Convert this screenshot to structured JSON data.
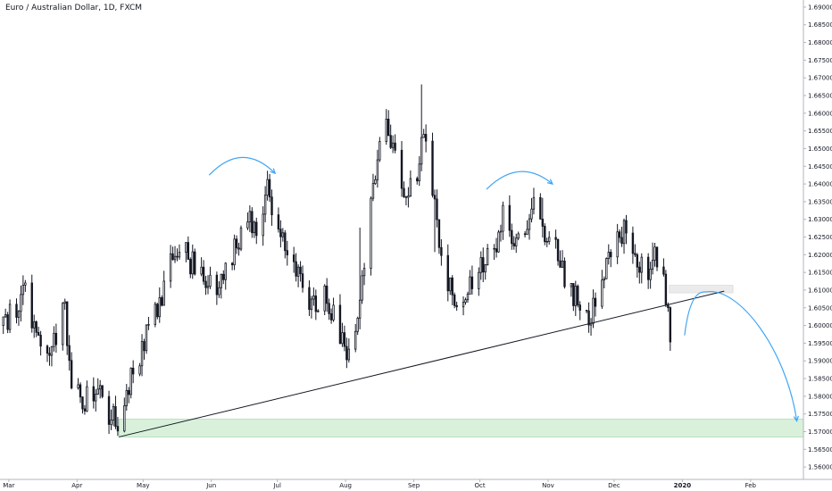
{
  "chart_data": {
    "type": "candlestick",
    "title": "Euro / Australian Dollar, 1D, FXCM",
    "y_ticks": [
      1.56,
      1.565,
      1.57,
      1.575,
      1.58,
      1.585,
      1.59,
      1.595,
      1.6,
      1.605,
      1.61,
      1.615,
      1.62,
      1.625,
      1.63,
      1.635,
      1.64,
      1.645,
      1.65,
      1.655,
      1.66,
      1.665,
      1.67,
      1.675,
      1.68,
      1.685,
      1.69
    ],
    "y_tick_labels": [
      "1.56000",
      "1.56500",
      "1.57000",
      "1.57500",
      "1.58000",
      "1.58500",
      "1.59000",
      "1.59500",
      "1.60000",
      "1.60500",
      "1.61000",
      "1.61500",
      "1.62000",
      "1.62500",
      "1.63000",
      "1.63500",
      "1.64000",
      "1.64500",
      "1.65000",
      "1.65500",
      "1.66000",
      "1.66500",
      "1.67000",
      "1.67500",
      "1.68000",
      "1.68500",
      "1.69000"
    ],
    "ylim": [
      1.5565,
      1.692
    ],
    "x_axis_labels": [
      {
        "label": "Mar",
        "date": "2019-03-01"
      },
      {
        "label": "Apr",
        "date": "2019-04-01"
      },
      {
        "label": "May",
        "date": "2019-05-01"
      },
      {
        "label": "Jun",
        "date": "2019-06-01"
      },
      {
        "label": "Jul",
        "date": "2019-07-01"
      },
      {
        "label": "Aug",
        "date": "2019-08-01"
      },
      {
        "label": "Sep",
        "date": "2019-09-01"
      },
      {
        "label": "Oct",
        "date": "2019-10-01"
      },
      {
        "label": "Nov",
        "date": "2019-11-01"
      },
      {
        "label": "Dec",
        "date": "2019-12-01"
      },
      {
        "label": "2020",
        "date": "2020-01-01",
        "bold": true
      },
      {
        "label": "Feb",
        "date": "2020-02-01"
      }
    ],
    "xlim": [
      "2019-02-25",
      "2020-02-25"
    ],
    "last_candle_date": "2019-12-26",
    "price_path": [
      [
        "2019-02-26",
        1.6
      ],
      [
        "2019-03-05",
        1.607
      ],
      [
        "2019-03-08",
        1.611
      ],
      [
        "2019-03-13",
        1.598
      ],
      [
        "2019-03-20",
        1.594
      ],
      [
        "2019-03-26",
        1.605
      ],
      [
        "2019-03-29",
        1.583
      ],
      [
        "2019-04-04",
        1.579
      ],
      [
        "2019-04-10",
        1.581
      ],
      [
        "2019-04-16",
        1.574
      ],
      [
        "2019-04-20",
        1.572
      ],
      [
        "2019-04-25",
        1.586
      ],
      [
        "2019-04-30",
        1.594
      ],
      [
        "2019-05-06",
        1.603
      ],
      [
        "2019-05-11",
        1.614
      ],
      [
        "2019-05-17",
        1.622
      ],
      [
        "2019-05-24",
        1.617
      ],
      [
        "2019-05-30",
        1.611
      ],
      [
        "2019-06-06",
        1.612
      ],
      [
        "2019-06-11",
        1.622
      ],
      [
        "2019-06-16",
        1.63
      ],
      [
        "2019-06-21",
        1.628
      ],
      [
        "2019-06-26",
        1.638
      ],
      [
        "2019-07-02",
        1.627
      ],
      [
        "2019-07-08",
        1.619
      ],
      [
        "2019-07-12",
        1.611
      ],
      [
        "2019-07-17",
        1.606
      ],
      [
        "2019-07-22",
        1.611
      ],
      [
        "2019-07-27",
        1.6
      ],
      [
        "2019-08-01",
        1.593
      ],
      [
        "2019-08-05",
        1.601
      ],
      [
        "2019-08-09",
        1.618
      ],
      [
        "2019-08-13",
        1.64
      ],
      [
        "2019-08-16",
        1.655
      ],
      [
        "2019-08-20",
        1.656
      ],
      [
        "2019-08-24",
        1.645
      ],
      [
        "2019-08-28",
        1.636
      ],
      [
        "2019-09-01",
        1.642
      ],
      [
        "2019-09-05",
        1.653
      ],
      [
        "2019-09-09",
        1.64
      ],
      [
        "2019-09-13",
        1.62
      ],
      [
        "2019-09-17",
        1.61
      ],
      [
        "2019-09-22",
        1.605
      ],
      [
        "2019-09-26",
        1.612
      ],
      [
        "2019-10-01",
        1.618
      ],
      [
        "2019-10-06",
        1.62
      ],
      [
        "2019-10-11",
        1.631
      ],
      [
        "2019-10-16",
        1.626
      ],
      [
        "2019-10-21",
        1.628
      ],
      [
        "2019-10-25",
        1.634
      ],
      [
        "2019-10-30",
        1.627
      ],
      [
        "2019-11-04",
        1.622
      ],
      [
        "2019-11-09",
        1.613
      ],
      [
        "2019-11-14",
        1.606
      ],
      [
        "2019-11-19",
        1.602
      ],
      [
        "2019-11-24",
        1.61
      ],
      [
        "2019-11-29",
        1.622
      ],
      [
        "2019-12-04",
        1.627
      ],
      [
        "2019-12-08",
        1.625
      ],
      [
        "2019-12-12",
        1.618
      ],
      [
        "2019-12-16",
        1.615
      ],
      [
        "2019-12-20",
        1.62
      ],
      [
        "2019-12-22",
        1.627
      ],
      [
        "2019-12-24",
        1.606
      ],
      [
        "2019-12-26",
        1.598
      ]
    ],
    "annotations": {
      "trendline": {
        "from": [
          "2019-04-20",
          1.5685
        ],
        "to": [
          "2020-01-20",
          1.6097
        ],
        "color": "#131722"
      },
      "support_zone": {
        "from": "2019-04-20",
        "to": "2020-02-26",
        "y_low": 1.5685,
        "y_high": 1.5735,
        "color": "#b9e6bd"
      },
      "resistance_zone": {
        "from": "2019-12-26",
        "to": "2020-01-24",
        "y_low": 1.6096,
        "y_high": 1.611,
        "color": "#e6e6e6"
      },
      "arcs": [
        {
          "from": [
            "2019-05-31",
            1.6425
          ],
          "peak": [
            "2019-06-15",
            1.6475
          ],
          "to": [
            "2019-06-30",
            1.643
          ],
          "color": "#42a5f5"
        },
        {
          "from": [
            "2019-10-04",
            1.6385
          ],
          "peak": [
            "2019-10-19",
            1.6435
          ],
          "to": [
            "2019-11-03",
            1.64
          ],
          "color": "#42a5f5"
        }
      ],
      "projection": {
        "color": "#42a5f5",
        "from": [
          "2020-01-02",
          1.5972
        ],
        "peak": [
          "2020-01-12",
          1.6095
        ],
        "to": [
          "2020-02-22",
          1.573
        ]
      }
    },
    "grid": false,
    "candle_colors": {
      "up": "#ffffff",
      "down": "#131722",
      "outline": "#131722"
    }
  }
}
